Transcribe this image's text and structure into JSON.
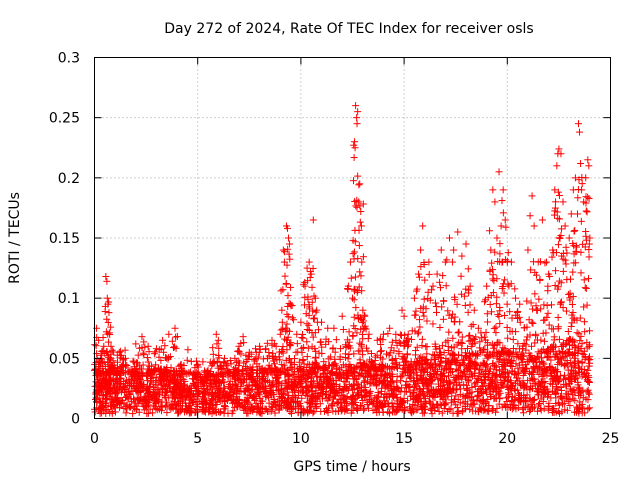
{
  "chart_data": {
    "type": "scatter",
    "title": "Day 272 of 2024, Rate Of TEC Index for receiver osls",
    "xlabel": "GPS time / hours",
    "ylabel": "ROTI / TECUs",
    "xlim": [
      0,
      25
    ],
    "ylim": [
      0,
      0.3
    ],
    "xticks": [
      0,
      5,
      10,
      15,
      20,
      25
    ],
    "xtick_labels": [
      "0",
      "5",
      "10",
      "15",
      "20",
      "25"
    ],
    "yticks": [
      0,
      0.05,
      0.1,
      0.15,
      0.2,
      0.25,
      0.3
    ],
    "ytick_labels": [
      "0",
      "0.05",
      "0.1",
      "0.15",
      "0.2",
      "0.25",
      "0.3"
    ],
    "grid": true,
    "marker": "plus",
    "color": "#ff0000",
    "x_data_range": [
      0,
      24
    ],
    "series": [
      {
        "name": "ROTI",
        "points": [
          [
            0.0,
            0.04
          ],
          [
            0.1,
            0.075
          ],
          [
            0.2,
            0.065
          ],
          [
            0.3,
            0.05
          ],
          [
            0.45,
            0.06
          ],
          [
            0.55,
            0.118
          ],
          [
            0.6,
            0.114
          ],
          [
            0.62,
            0.1
          ],
          [
            0.65,
            0.095
          ],
          [
            0.7,
            0.088
          ],
          [
            0.8,
            0.06
          ],
          [
            0.9,
            0.048
          ],
          [
            1.2,
            0.055
          ],
          [
            1.5,
            0.05
          ],
          [
            2.0,
            0.062
          ],
          [
            2.3,
            0.068
          ],
          [
            2.6,
            0.06
          ],
          [
            3.0,
            0.058
          ],
          [
            3.3,
            0.065
          ],
          [
            3.6,
            0.07
          ],
          [
            3.9,
            0.075
          ],
          [
            4.2,
            0.045
          ],
          [
            5.0,
            0.045
          ],
          [
            5.5,
            0.04
          ],
          [
            5.9,
            0.07
          ],
          [
            6.0,
            0.065
          ],
          [
            6.3,
            0.05
          ],
          [
            6.8,
            0.05
          ],
          [
            7.0,
            0.06
          ],
          [
            7.2,
            0.068
          ],
          [
            7.5,
            0.055
          ],
          [
            7.8,
            0.058
          ],
          [
            8.0,
            0.06
          ],
          [
            8.3,
            0.058
          ],
          [
            8.6,
            0.065
          ],
          [
            8.8,
            0.06
          ],
          [
            9.0,
            0.07
          ],
          [
            9.1,
            0.08
          ],
          [
            9.15,
            0.14
          ],
          [
            9.2,
            0.13
          ],
          [
            9.3,
            0.16
          ],
          [
            9.35,
            0.158
          ],
          [
            9.4,
            0.15
          ],
          [
            9.45,
            0.145
          ],
          [
            9.5,
            0.095
          ],
          [
            9.8,
            0.07
          ],
          [
            10.0,
            0.08
          ],
          [
            10.2,
            0.11
          ],
          [
            10.3,
            0.125
          ],
          [
            10.4,
            0.13
          ],
          [
            10.5,
            0.12
          ],
          [
            10.6,
            0.165
          ],
          [
            10.7,
            0.1
          ],
          [
            10.8,
            0.08
          ],
          [
            11.0,
            0.08
          ],
          [
            11.3,
            0.075
          ],
          [
            11.6,
            0.075
          ],
          [
            12.0,
            0.085
          ],
          [
            12.3,
            0.11
          ],
          [
            12.4,
            0.13
          ],
          [
            12.5,
            0.1
          ],
          [
            12.6,
            0.23
          ],
          [
            12.65,
            0.26
          ],
          [
            12.7,
            0.25
          ],
          [
            12.72,
            0.245
          ],
          [
            12.75,
            0.255
          ],
          [
            12.8,
            0.18
          ],
          [
            12.85,
            0.195
          ],
          [
            12.9,
            0.172
          ],
          [
            12.95,
            0.13
          ],
          [
            13.0,
            0.09
          ],
          [
            13.1,
            0.085
          ],
          [
            13.3,
            0.07
          ],
          [
            13.7,
            0.065
          ],
          [
            14.0,
            0.07
          ],
          [
            14.3,
            0.075
          ],
          [
            14.6,
            0.07
          ],
          [
            14.9,
            0.09
          ],
          [
            15.0,
            0.085
          ],
          [
            15.2,
            0.07
          ],
          [
            15.5,
            0.1
          ],
          [
            15.7,
            0.12
          ],
          [
            15.8,
            0.14
          ],
          [
            15.9,
            0.16
          ],
          [
            16.0,
            0.115
          ],
          [
            16.2,
            0.13
          ],
          [
            16.4,
            0.11
          ],
          [
            16.6,
            0.12
          ],
          [
            16.8,
            0.14
          ],
          [
            17.0,
            0.13
          ],
          [
            17.2,
            0.15
          ],
          [
            17.4,
            0.14
          ],
          [
            17.6,
            0.155
          ],
          [
            17.8,
            0.135
          ],
          [
            18.0,
            0.145
          ],
          [
            18.2,
            0.11
          ],
          [
            18.4,
            0.09
          ],
          [
            18.6,
            0.075
          ],
          [
            19.0,
            0.11
          ],
          [
            19.2,
            0.14
          ],
          [
            19.3,
            0.19
          ],
          [
            19.4,
            0.18
          ],
          [
            19.5,
            0.15
          ],
          [
            19.6,
            0.205
          ],
          [
            19.7,
            0.16
          ],
          [
            19.8,
            0.19
          ],
          [
            19.9,
            0.165
          ],
          [
            20.0,
            0.13
          ],
          [
            20.2,
            0.13
          ],
          [
            20.4,
            0.1
          ],
          [
            20.6,
            0.095
          ],
          [
            21.0,
            0.14
          ],
          [
            21.2,
            0.185
          ],
          [
            21.3,
            0.16
          ],
          [
            21.5,
            0.13
          ],
          [
            21.7,
            0.165
          ],
          [
            21.9,
            0.13
          ],
          [
            22.0,
            0.12
          ],
          [
            22.2,
            0.14
          ],
          [
            22.3,
            0.19
          ],
          [
            22.4,
            0.21
          ],
          [
            22.45,
            0.22
          ],
          [
            22.5,
            0.224
          ],
          [
            22.6,
            0.22
          ],
          [
            22.7,
            0.18
          ],
          [
            22.8,
            0.16
          ],
          [
            23.0,
            0.15
          ],
          [
            23.1,
            0.17
          ],
          [
            23.2,
            0.19
          ],
          [
            23.3,
            0.2
          ],
          [
            23.4,
            0.17
          ],
          [
            23.45,
            0.245
          ],
          [
            23.5,
            0.238
          ],
          [
            23.6,
            0.19
          ],
          [
            23.7,
            0.18
          ],
          [
            23.8,
            0.2
          ],
          [
            23.9,
            0.215
          ],
          [
            23.95,
            0.21
          ],
          [
            24.0,
            0.15
          ]
        ],
        "band": [
          [
            0,
            0.038
          ],
          [
            1,
            0.036
          ],
          [
            2,
            0.038
          ],
          [
            3,
            0.038
          ],
          [
            4,
            0.036
          ],
          [
            5,
            0.034
          ],
          [
            6,
            0.034
          ],
          [
            7,
            0.036
          ],
          [
            8,
            0.038
          ],
          [
            9,
            0.038
          ],
          [
            10,
            0.04
          ],
          [
            11,
            0.04
          ],
          [
            12,
            0.042
          ],
          [
            13,
            0.042
          ],
          [
            14,
            0.04
          ],
          [
            15,
            0.042
          ],
          [
            16,
            0.048
          ],
          [
            17,
            0.05
          ],
          [
            18,
            0.05
          ],
          [
            19,
            0.052
          ],
          [
            20,
            0.052
          ],
          [
            21,
            0.05
          ],
          [
            22,
            0.055
          ],
          [
            23,
            0.06
          ],
          [
            24,
            0.05
          ]
        ]
      }
    ]
  }
}
